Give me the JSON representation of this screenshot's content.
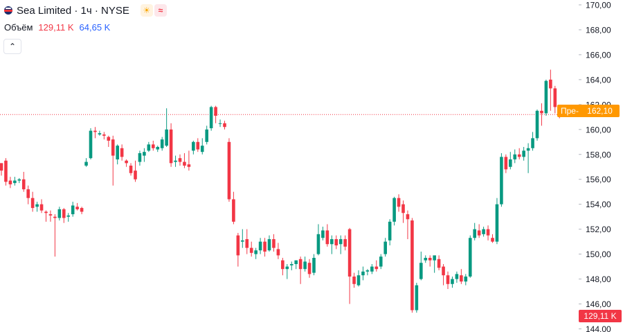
{
  "header": {
    "symbol": "Sea Limited · 1ч · NYSE",
    "icons": [
      "sun-icon",
      "wave-icon"
    ]
  },
  "volume": {
    "label": "Объём",
    "val1": "129,11 K",
    "val2": "64,65 K"
  },
  "collapse": {
    "glyph": "⌃"
  },
  "price_tag": {
    "pre_label": "Пре-",
    "value": "162,10"
  },
  "volume_tag": {
    "value": "129,11 K"
  },
  "colors": {
    "up": "#089981",
    "down": "#f23645",
    "pre": "#ff9800",
    "grid": "#f0f3fa"
  },
  "chart_data": {
    "type": "candlestick",
    "title": "Sea Limited · 1ч · NYSE",
    "ylim": [
      144,
      170
    ],
    "y_ticks": [
      "144,00",
      "146,00",
      "148,00",
      "150,00",
      "152,00",
      "154,00",
      "156,00",
      "158,00",
      "160,00",
      "162,00",
      "164,00",
      "166,00",
      "168,00",
      "170,00"
    ],
    "current_price": 161.2,
    "grid": false,
    "candles": [
      [
        157.3,
        157.3,
        156.3,
        156.7
      ],
      [
        157.5,
        157.7,
        155.5,
        155.8
      ],
      [
        155.9,
        156.2,
        155.3,
        155.6
      ],
      [
        155.7,
        156.2,
        155.5,
        155.9
      ],
      [
        155.9,
        156.1,
        155.7,
        156.0
      ],
      [
        156.0,
        156.6,
        155.0,
        155.2
      ],
      [
        155.2,
        155.5,
        154.0,
        154.5
      ],
      [
        154.5,
        155.0,
        153.4,
        153.7
      ],
      [
        153.8,
        154.2,
        153.4,
        154.0
      ],
      [
        154.0,
        154.4,
        153.3,
        153.5
      ],
      [
        153.4,
        153.5,
        152.6,
        153.3
      ],
      [
        153.2,
        153.5,
        152.6,
        153.1
      ],
      [
        153.0,
        153.2,
        149.8,
        152.9
      ],
      [
        152.9,
        153.8,
        152.7,
        153.6
      ],
      [
        153.6,
        153.7,
        152.5,
        152.9
      ],
      [
        153.0,
        153.3,
        152.6,
        153.1
      ],
      [
        153.2,
        154.2,
        153.0,
        153.9
      ],
      [
        153.8,
        154.1,
        153.5,
        153.6
      ],
      [
        153.7,
        153.8,
        153.2,
        153.4
      ],
      [
        157.1,
        157.7,
        157.0,
        157.4
      ],
      [
        157.7,
        160.1,
        157.6,
        159.9
      ],
      [
        159.9,
        160.2,
        159.3,
        159.8
      ],
      [
        159.6,
        159.9,
        159.5,
        159.7
      ],
      [
        159.6,
        159.8,
        159.2,
        159.5
      ],
      [
        159.4,
        159.5,
        158.6,
        159.1
      ],
      [
        159.2,
        159.5,
        155.5,
        157.9
      ],
      [
        157.6,
        158.8,
        157.2,
        158.7
      ],
      [
        158.5,
        158.8,
        157.5,
        157.8
      ],
      [
        157.5,
        157.6,
        157.0,
        157.3
      ],
      [
        157.1,
        157.3,
        156.3,
        156.5
      ],
      [
        156.7,
        157.5,
        155.8,
        156.0
      ],
      [
        157.4,
        158.3,
        157.1,
        158.1
      ],
      [
        157.9,
        158.5,
        157.4,
        158.2
      ],
      [
        158.3,
        159.0,
        158.2,
        158.8
      ],
      [
        158.8,
        159.1,
        158.3,
        158.5
      ],
      [
        158.4,
        158.7,
        158.2,
        158.6
      ],
      [
        158.5,
        159.4,
        158.3,
        159.2
      ],
      [
        158.7,
        161.7,
        158.6,
        160.0
      ],
      [
        160.0,
        160.5,
        157.0,
        157.3
      ],
      [
        157.4,
        157.9,
        157.0,
        157.5
      ],
      [
        157.7,
        158.0,
        157.1,
        157.4
      ],
      [
        157.4,
        158.1,
        156.9,
        157.1
      ],
      [
        157.2,
        158.3,
        156.7,
        157.0
      ],
      [
        158.3,
        159.1,
        158.0,
        159.0
      ],
      [
        159.0,
        159.3,
        158.2,
        158.4
      ],
      [
        158.2,
        159.3,
        158.0,
        158.7
      ],
      [
        159.0,
        160.3,
        158.8,
        160.0
      ],
      [
        160.1,
        161.9,
        159.9,
        161.8
      ],
      [
        161.8,
        161.9,
        160.5,
        161.1
      ],
      [
        160.5,
        160.8,
        160.2,
        160.5
      ],
      [
        160.5,
        160.7,
        160.0,
        160.2
      ],
      [
        159.0,
        159.3,
        154.2,
        154.4
      ],
      [
        154.4,
        155.0,
        152.4,
        152.6
      ],
      [
        151.5,
        151.7,
        149.0,
        149.9
      ],
      [
        151.0,
        152.0,
        150.5,
        151.1
      ],
      [
        151.2,
        152.0,
        150.0,
        150.5
      ],
      [
        150.5,
        151.0,
        149.8,
        150.1
      ],
      [
        150.0,
        150.5,
        149.6,
        150.3
      ],
      [
        150.3,
        151.3,
        150.0,
        151.0
      ],
      [
        151.0,
        151.3,
        149.8,
        150.2
      ],
      [
        150.3,
        151.5,
        150.2,
        151.2
      ],
      [
        151.2,
        151.6,
        150.2,
        150.5
      ],
      [
        150.4,
        150.9,
        149.6,
        149.9
      ],
      [
        149.5,
        149.7,
        148.3,
        148.8
      ],
      [
        148.8,
        149.2,
        148.0,
        149.0
      ],
      [
        149.1,
        149.4,
        148.7,
        149.2
      ],
      [
        149.2,
        149.5,
        148.8,
        149.5
      ],
      [
        149.6,
        149.8,
        147.6,
        148.8
      ],
      [
        148.8,
        149.8,
        148.6,
        149.4
      ],
      [
        149.3,
        149.6,
        148.1,
        148.4
      ],
      [
        148.5,
        150.0,
        148.3,
        149.7
      ],
      [
        150.0,
        152.4,
        149.9,
        151.6
      ],
      [
        151.3,
        152.2,
        151.1,
        151.9
      ],
      [
        151.9,
        152.4,
        150.6,
        150.8
      ],
      [
        150.8,
        151.5,
        150.0,
        151.2
      ],
      [
        151.2,
        151.5,
        150.4,
        150.7
      ],
      [
        150.8,
        151.5,
        150.0,
        151.2
      ],
      [
        151.2,
        151.5,
        150.3,
        150.6
      ],
      [
        152.0,
        152.1,
        146.0,
        148.2
      ],
      [
        148.2,
        148.5,
        147.3,
        147.6
      ],
      [
        147.5,
        148.7,
        147.4,
        148.3
      ],
      [
        148.3,
        149.0,
        147.9,
        148.6
      ],
      [
        148.6,
        148.8,
        148.3,
        148.7
      ],
      [
        148.6,
        149.2,
        148.4,
        149.0
      ],
      [
        149.0,
        149.5,
        148.6,
        148.8
      ],
      [
        149.0,
        150.0,
        148.8,
        149.8
      ],
      [
        150.0,
        151.3,
        149.8,
        151.0
      ],
      [
        151.1,
        152.8,
        150.7,
        152.6
      ],
      [
        152.6,
        154.6,
        152.3,
        154.5
      ],
      [
        154.5,
        154.8,
        153.4,
        153.8
      ],
      [
        154.0,
        154.3,
        152.5,
        153.3
      ],
      [
        153.2,
        153.5,
        151.2,
        152.8
      ],
      [
        152.7,
        152.9,
        145.3,
        145.5
      ],
      [
        145.5,
        147.7,
        145.3,
        147.5
      ],
      [
        148.0,
        150.2,
        147.9,
        149.3
      ],
      [
        149.5,
        149.9,
        149.3,
        149.7
      ],
      [
        149.7,
        149.9,
        149.0,
        149.5
      ],
      [
        149.5,
        149.8,
        148.5,
        149.9
      ],
      [
        149.6,
        149.9,
        148.7,
        148.9
      ],
      [
        149.0,
        149.2,
        147.5,
        148.3
      ],
      [
        148.3,
        148.6,
        147.2,
        147.6
      ],
      [
        147.6,
        148.2,
        147.3,
        148.0
      ],
      [
        148.0,
        148.6,
        147.7,
        148.4
      ],
      [
        148.3,
        148.8,
        147.6,
        147.8
      ],
      [
        147.8,
        148.4,
        147.5,
        148.2
      ],
      [
        148.2,
        151.5,
        148.1,
        151.3
      ],
      [
        151.3,
        152.5,
        151.1,
        152.0
      ],
      [
        151.9,
        152.4,
        151.3,
        151.5
      ],
      [
        151.6,
        152.2,
        151.4,
        152.0
      ],
      [
        152.0,
        152.3,
        151.1,
        151.5
      ],
      [
        151.3,
        151.6,
        150.9,
        151.0
      ],
      [
        151.0,
        154.5,
        150.8,
        154.0
      ],
      [
        154.0,
        158.1,
        153.8,
        157.8
      ],
      [
        157.8,
        158.0,
        156.5,
        156.8
      ],
      [
        157.0,
        158.2,
        156.8,
        157.6
      ],
      [
        157.6,
        158.4,
        157.3,
        158.0
      ],
      [
        158.0,
        158.5,
        157.6,
        157.8
      ],
      [
        157.8,
        158.6,
        157.5,
        158.3
      ],
      [
        158.3,
        158.9,
        156.5,
        158.5
      ],
      [
        158.5,
        159.8,
        158.3,
        159.3
      ],
      [
        159.3,
        161.6,
        159.1,
        161.5
      ],
      [
        161.5,
        162.1,
        160.3,
        161.3
      ],
      [
        161.3,
        164.0,
        161.1,
        163.9
      ],
      [
        164.0,
        164.8,
        161.5,
        163.3
      ],
      [
        163.3,
        163.5,
        161.3,
        161.8
      ],
      [
        161.7,
        161.9,
        160.9,
        161.2
      ]
    ]
  }
}
